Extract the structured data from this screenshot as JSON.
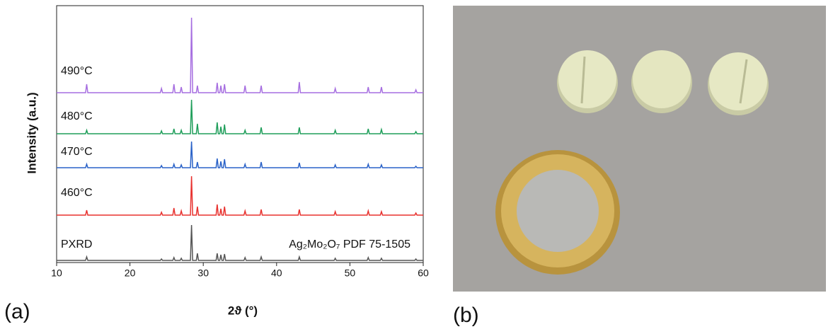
{
  "chart_data": {
    "type": "line",
    "xlabel": "2ϑ (°)",
    "ylabel": "Intensity (a.u.)",
    "annotation": "Ag₂Mo₂O₇ PDF 75-1505",
    "xlim": [
      10,
      60
    ],
    "xticks": [
      10,
      20,
      30,
      40,
      50,
      60
    ],
    "x": [
      10,
      13.95,
      14.1,
      14.25,
      24.15,
      24.3,
      24.45,
      25.85,
      26,
      26.15,
      26.85,
      27,
      27.15,
      28.25,
      28.4,
      28.55,
      29.05,
      29.2,
      29.35,
      31.75,
      31.9,
      32.05,
      32.25,
      32.4,
      32.55,
      32.75,
      32.9,
      33.05,
      35.55,
      35.7,
      35.85,
      37.75,
      37.9,
      38.05,
      42.95,
      43.1,
      43.25,
      47.85,
      48,
      48.15,
      52.35,
      52.5,
      52.65,
      54.15,
      54.3,
      54.45,
      58.85,
      59,
      59.15,
      60
    ],
    "series": [
      {
        "name": "PXRD",
        "color": "#555555",
        "values": [
          0,
          0,
          5,
          0,
          0,
          2,
          0,
          0,
          4,
          0,
          0,
          3,
          0,
          0,
          50,
          0,
          0,
          10,
          0,
          0,
          10,
          0,
          0,
          8,
          0,
          0,
          9,
          0,
          0,
          4,
          0,
          0,
          5,
          0,
          0,
          5,
          0,
          0,
          3,
          0,
          0,
          4,
          0,
          0,
          3,
          0,
          0,
          2,
          0,
          0
        ]
      },
      {
        "name": "460°C",
        "color": "#e8322f",
        "values": [
          0,
          0,
          7,
          0,
          0,
          4,
          0,
          0,
          10,
          0,
          0,
          6,
          0,
          0,
          55,
          0,
          0,
          12,
          0,
          0,
          15,
          0,
          0,
          9,
          0,
          0,
          12,
          0,
          0,
          6,
          0,
          0,
          8,
          0,
          0,
          8,
          0,
          0,
          5,
          0,
          0,
          6,
          0,
          0,
          5,
          0,
          0,
          3,
          0,
          0
        ]
      },
      {
        "name": "470°C",
        "color": "#2a62c8",
        "values": [
          0,
          0,
          5,
          0,
          0,
          3,
          0,
          0,
          5,
          0,
          0,
          4,
          0,
          0,
          37,
          0,
          0,
          8,
          0,
          0,
          13,
          0,
          0,
          9,
          0,
          0,
          12,
          0,
          0,
          5,
          0,
          0,
          8,
          0,
          0,
          7,
          0,
          0,
          4,
          0,
          0,
          5,
          0,
          0,
          4,
          0,
          0,
          2,
          0,
          0
        ]
      },
      {
        "name": "480°C",
        "color": "#1f9e5a",
        "values": [
          0,
          0,
          5,
          0,
          0,
          4,
          0,
          0,
          7,
          0,
          0,
          5,
          0,
          0,
          48,
          0,
          0,
          14,
          0,
          0,
          16,
          0,
          0,
          10,
          0,
          0,
          13,
          0,
          0,
          5,
          0,
          0,
          9,
          0,
          0,
          9,
          0,
          0,
          5,
          0,
          0,
          7,
          0,
          0,
          6,
          0,
          0,
          3,
          0,
          0
        ]
      },
      {
        "name": "490°C",
        "color": "#a66ee0",
        "values": [
          0,
          0,
          12,
          0,
          0,
          6,
          0,
          0,
          12,
          0,
          0,
          8,
          0,
          0,
          106,
          0,
          0,
          10,
          0,
          0,
          14,
          0,
          0,
          10,
          0,
          0,
          12,
          0,
          0,
          10,
          0,
          0,
          10,
          0,
          0,
          15,
          0,
          0,
          6,
          0,
          0,
          8,
          0,
          0,
          8,
          0,
          0,
          4,
          0,
          0
        ]
      }
    ]
  },
  "panel_labels": [
    "(a)",
    "(b)"
  ]
}
